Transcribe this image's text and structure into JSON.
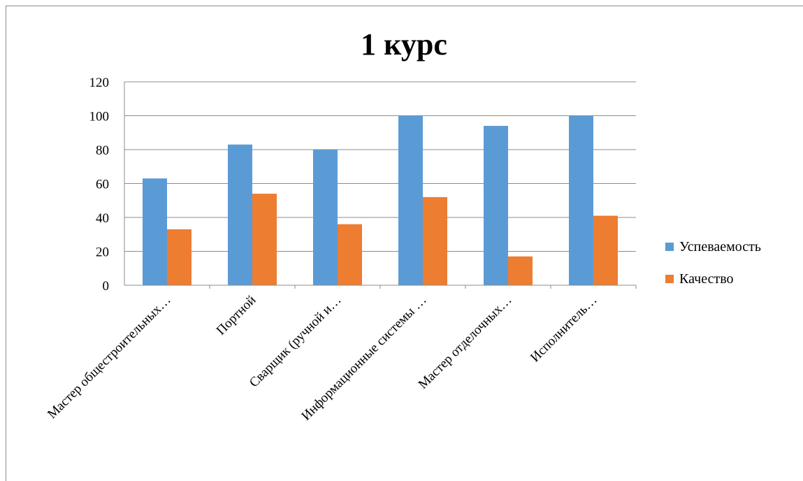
{
  "chart_data": {
    "type": "bar",
    "title": "1 курс",
    "xlabel": "",
    "ylabel": "",
    "ylim": [
      0,
      120
    ],
    "yticks": [
      0,
      20,
      40,
      60,
      80,
      100,
      120
    ],
    "grid": true,
    "legend_position": "right",
    "categories": [
      "Мастер общестроительных…",
      "Портной",
      "Сварщик (ручной и…",
      "Информационные системы …",
      "Мастер отделочных…",
      "Исполнитель…"
    ],
    "series": [
      {
        "name": "Успеваемость",
        "color": "#5B9BD5",
        "values": [
          63,
          83,
          80,
          100,
          94,
          100
        ]
      },
      {
        "name": "Качество",
        "color": "#ED7D31",
        "values": [
          33,
          54,
          36,
          52,
          17,
          41
        ]
      }
    ]
  }
}
